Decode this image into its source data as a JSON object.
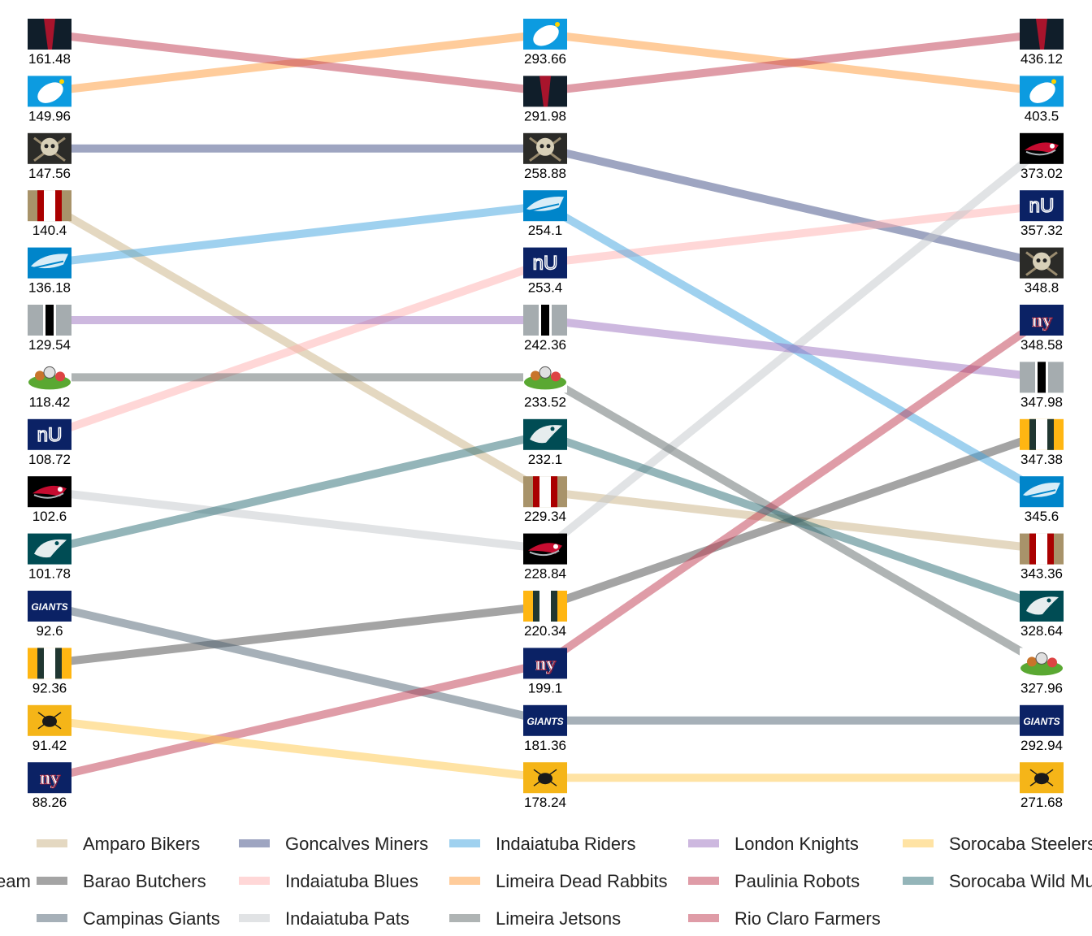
{
  "chart_data": {
    "type": "line",
    "subtype": "bump",
    "title": "",
    "xlabel": "",
    "ylabel": "",
    "legend_title": "Team",
    "legend_position": "bottom",
    "grid": false,
    "x": [
      "",
      "",
      ""
    ],
    "series": [
      {
        "name": "Amparo Bikers",
        "color": "#c9b183",
        "logo": "gold-red-stripes-helmet-icon",
        "values": [
          140.4,
          229.34,
          343.36
        ]
      },
      {
        "name": "Barao Butchers",
        "color": "#4a4a4a",
        "logo": "green-yellow-stripes-helmet-icon",
        "values": [
          92.36,
          220.34,
          347.38
        ]
      },
      {
        "name": "Campinas Giants",
        "color": "#4e6172",
        "logo": "giants-script-logo-icon",
        "values": [
          92.6,
          181.36,
          292.94
        ]
      },
      {
        "name": "Goncalves Miners",
        "color": "#3e4c84",
        "logo": "skull-pickaxe-logo-icon",
        "values": [
          147.56,
          258.88,
          348.8
        ]
      },
      {
        "name": "Indaiatuba Blues",
        "color": "#ffb0b0",
        "logo": "nyg-retro-logo-icon",
        "values": [
          108.72,
          253.4,
          357.32
        ]
      },
      {
        "name": "Indaiatuba Pats",
        "color": "#c3c8cb",
        "logo": "patriots-logo-icon",
        "values": [
          102.6,
          228.84,
          373.02
        ]
      },
      {
        "name": "Indaiatuba Riders",
        "color": "#3fa4e0",
        "logo": "panther-logo-icon",
        "values": [
          136.18,
          254.1,
          345.6
        ]
      },
      {
        "name": "Limeira Dead Rabbits",
        "color": "#ff9a38",
        "logo": "white-rabbit-logo-icon",
        "values": [
          149.96,
          293.66,
          403.5
        ]
      },
      {
        "name": "Limeira Jetsons",
        "color": "#5f6a6a",
        "logo": "jetsons-cartoon-logo-icon",
        "values": [
          118.42,
          233.52,
          327.96
        ]
      },
      {
        "name": "London Knights",
        "color": "#9b72c0",
        "logo": "silver-black-stripe-helmet-icon",
        "values": [
          129.54,
          242.36,
          347.98
        ]
      },
      {
        "name": "Paulinia Robots",
        "color": "#c0394f",
        "logo": "ny-logo-icon",
        "values": [
          88.26,
          199.1,
          348.58
        ]
      },
      {
        "name": "Rio Claro Farmers",
        "color": "#c0394f",
        "logo": "dark-red-triangle-logo-icon",
        "values": [
          161.48,
          291.98,
          436.12
        ]
      },
      {
        "name": "Sorocaba Steelers",
        "color": "#ffc74a",
        "logo": "yellow-beetle-logo-icon",
        "values": [
          91.42,
          178.24,
          271.68
        ]
      },
      {
        "name": "Sorocaba Wild Mustangs",
        "color": "#2a6b74",
        "logo": "eagle-logo-icon",
        "values": [
          101.78,
          232.1,
          328.64
        ]
      }
    ],
    "legend_order": [
      "Amparo Bikers",
      "Barao Butchers",
      "Campinas Giants",
      "Goncalves Miners",
      "Indaiatuba Blues",
      "Indaiatuba Pats",
      "Indaiatuba Riders",
      "Limeira Dead Rabbits",
      "Limeira Jetsons",
      "London Knights",
      "Paulinia Robots",
      "Rio Claro Farmers",
      "Sorocaba Steelers",
      "Sorocaba Wild Mustangs"
    ]
  }
}
